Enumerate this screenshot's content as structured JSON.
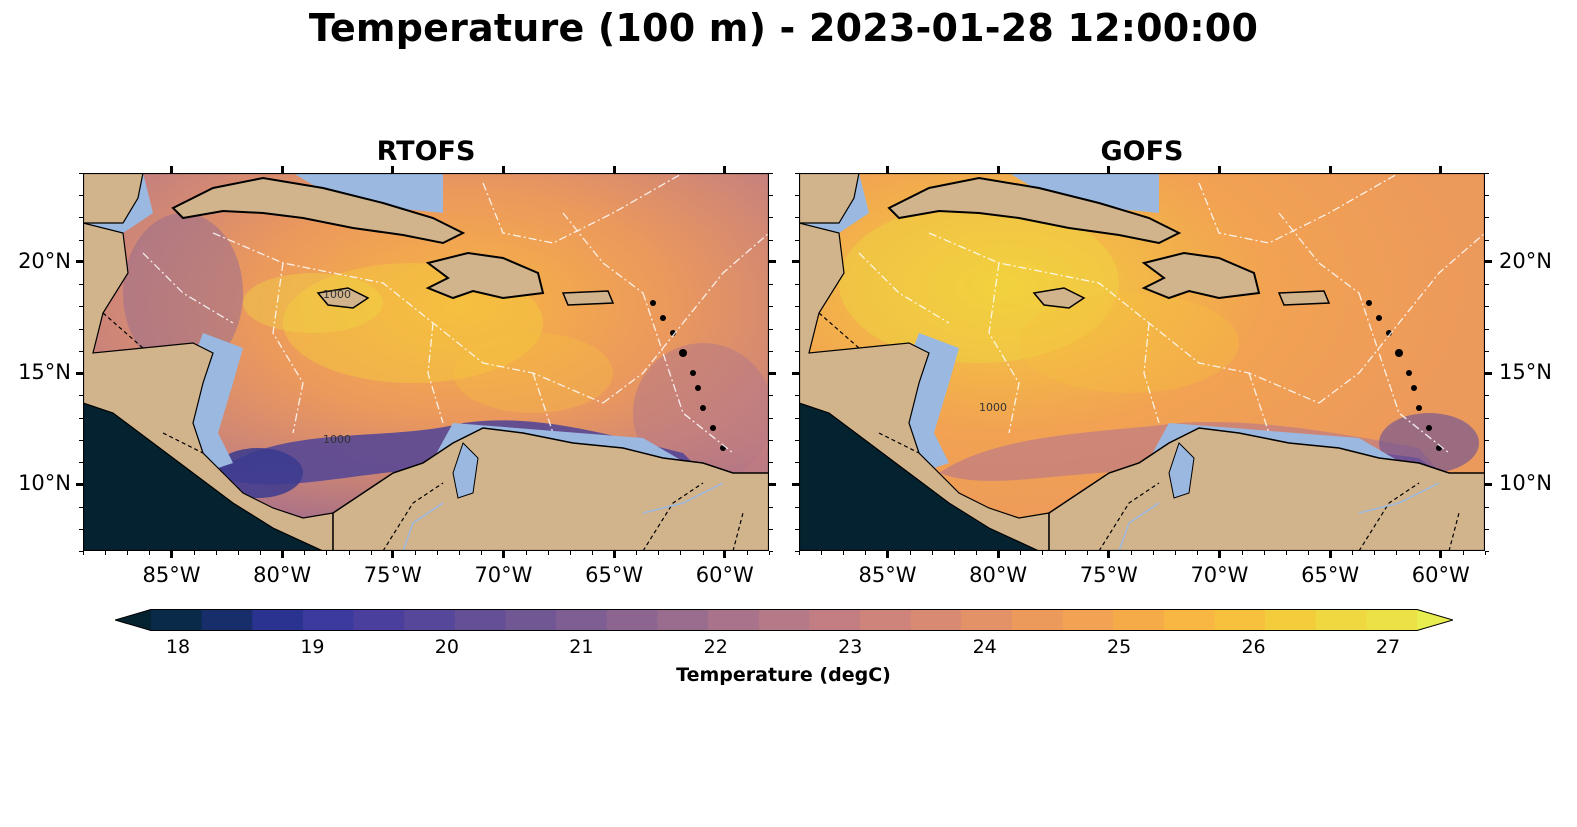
{
  "figure": {
    "title": "Temperature (100 m) - 2023-01-28 12:00:00"
  },
  "panels": [
    {
      "title": "RTOFS"
    },
    {
      "title": "GOFS"
    }
  ],
  "axes": {
    "lat_ticks": [
      "20°N",
      "15°N",
      "10°N"
    ],
    "lon_ticks": [
      "85°W",
      "80°W",
      "75°W",
      "70°W",
      "65°W",
      "60°W"
    ],
    "lon_range": [
      -89,
      -58
    ],
    "lat_range": [
      7,
      24
    ]
  },
  "colorbar": {
    "label": "Temperature (degC)",
    "ticks": [
      "18",
      "19",
      "20",
      "21",
      "22",
      "23",
      "24",
      "25",
      "26",
      "27"
    ],
    "range": [
      18,
      27
    ],
    "extend": "both",
    "colormap": "thermal",
    "colors": [
      "#04222f",
      "#0a2a4a",
      "#172e6a",
      "#2a3390",
      "#3c3a9e",
      "#4a3f9c",
      "#57479a",
      "#654f97",
      "#725795",
      "#7f5f93",
      "#8c6690",
      "#9a6d8e",
      "#a8738b",
      "#b67987",
      "#c27e82",
      "#ce847b",
      "#d98a72",
      "#e39167",
      "#ec995c",
      "#f2a252",
      "#f6ab49",
      "#f8b642",
      "#f7c13e",
      "#f4cd3c",
      "#f0d840",
      "#ece247",
      "#e8ee4f"
    ]
  },
  "map": {
    "land_color": "#d2b48c",
    "shelf_color": "#9bb9e0",
    "pacific_color": "#04222f",
    "contour_labels": [
      "1000",
      "1000",
      "1000"
    ]
  }
}
